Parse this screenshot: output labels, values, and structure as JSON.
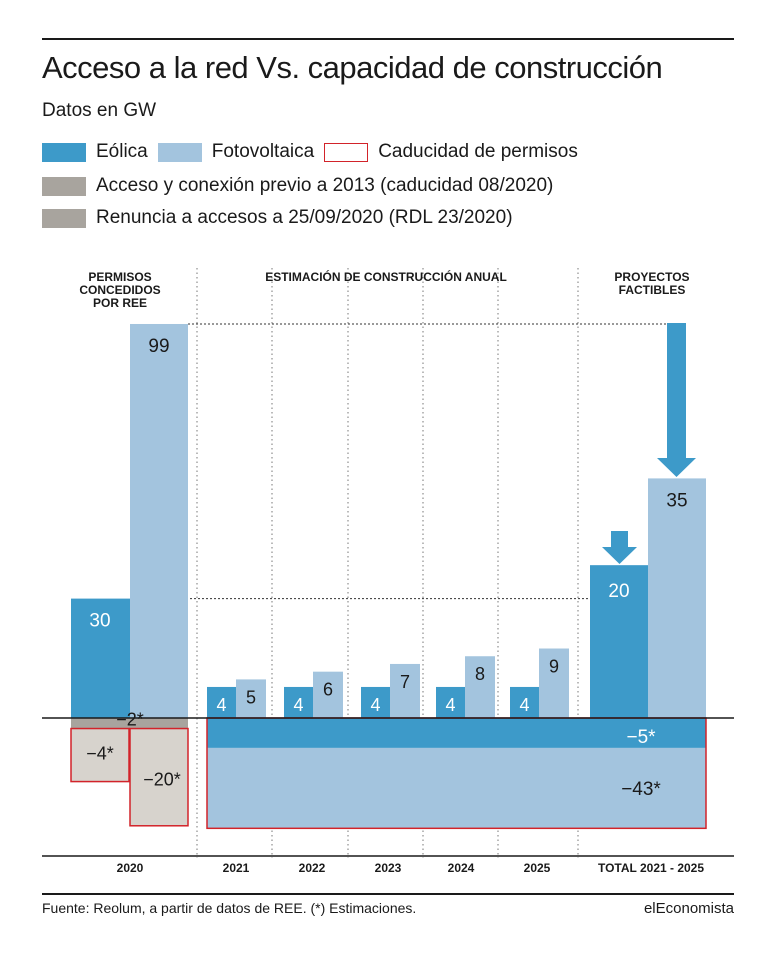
{
  "header": {
    "title": "Acceso a la red Vs. capacidad de construcción",
    "subtitle": "Datos en GW"
  },
  "legend": {
    "eolica": "Eólica",
    "fotovoltaica": "Fotovoltaica",
    "caducidad": "Caducidad de permisos",
    "acceso": "Acceso y conexión previo a 2013 (caducidad 08/2020)",
    "renuncia": "Renuncia a accesos a 25/09/2020 (RDL 23/2020)"
  },
  "colors": {
    "eolica": "#3d9ac9",
    "fotovoltaica": "#a3c4de",
    "acceso": "#a8a49e",
    "renuncia": "#d7d3cd",
    "caducidad_border": "#d2232a"
  },
  "chart_data": {
    "type": "bar",
    "section_headers": {
      "permisos": [
        "PERMISOS",
        "CONCEDIDOS",
        "POR REE"
      ],
      "estimacion": "ESTIMACIÓN DE CONSTRUCCIÓN ANUAL",
      "proyectos": [
        "PROYECTOS",
        "FACTIBLES"
      ]
    },
    "categories": [
      "2020",
      "2021",
      "2022",
      "2023",
      "2024",
      "2025",
      "TOTAL 2021 - 2025"
    ],
    "series": [
      {
        "name": "Eólica",
        "values": [
          30,
          4,
          4,
          4,
          4,
          4,
          20
        ]
      },
      {
        "name": "Fotovoltaica",
        "values": [
          99,
          5,
          6,
          7,
          8,
          9,
          35
        ]
      }
    ],
    "negatives": {
      "acceso": {
        "value": -2,
        "label": "−2*"
      },
      "renuncia_eolica": {
        "value": -4,
        "label": "−4*"
      },
      "renuncia_fotovoltaica": {
        "value": -20,
        "label": "−20*"
      },
      "caducidad_eolica_2021_2025": {
        "value": -5,
        "label": "−5*"
      },
      "caducidad_fotovoltaica_2021_2025": {
        "value": -43,
        "label": "−43*"
      }
    },
    "bar_labels": {
      "y2020": [
        "30",
        "99"
      ],
      "y2021": [
        "4",
        "5"
      ],
      "y2022": [
        "4",
        "6"
      ],
      "y2023": [
        "4",
        "7"
      ],
      "y2024": [
        "4",
        "8"
      ],
      "y2025": [
        "4",
        "9"
      ],
      "total": [
        "20",
        "35"
      ]
    },
    "ylim": [
      -23,
      100
    ],
    "grid": false
  },
  "footer": {
    "source": "Fuente: Reolum, a partir de datos de REE. (*) Estimaciones.",
    "brand": "elEconomista"
  }
}
